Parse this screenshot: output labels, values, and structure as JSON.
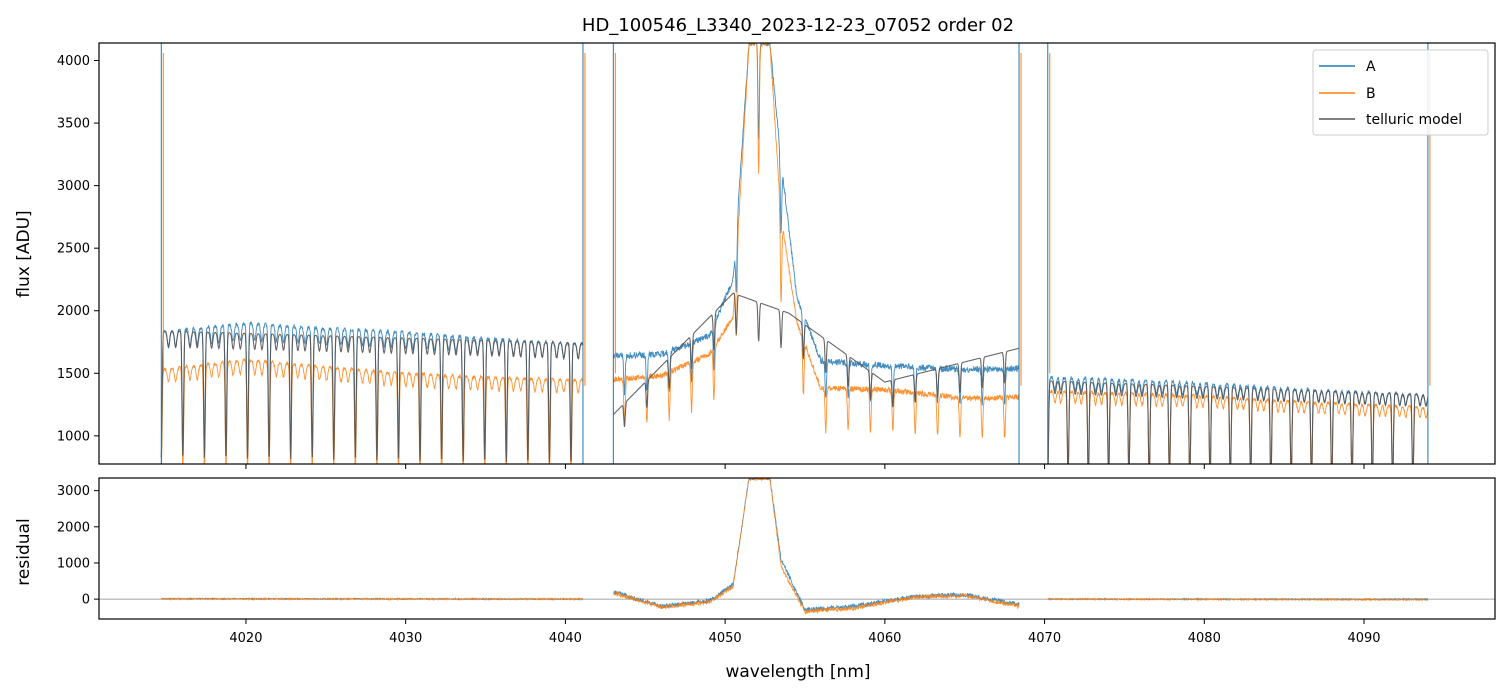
{
  "chart_data": {
    "type": "line",
    "title": "HD_100546_L3340_2023-12-23_07052  order 02",
    "xlabel": "wavelength [nm]",
    "x_ticks": [
      "4020",
      "4030",
      "4040",
      "4050",
      "4060",
      "4070",
      "4080",
      "4090"
    ],
    "xlim": [
      4010.8,
      4098.2
    ],
    "colors": {
      "A": "#1f77b4",
      "B": "#ff7f0e",
      "telluric": "#555555",
      "zero_line": "#888888"
    },
    "panels": [
      {
        "name": "flux",
        "ylabel": "flux [ADU]",
        "ylim": [
          775,
          4140
        ],
        "y_ticks": [
          "1000",
          "1500",
          "2000",
          "2500",
          "3000",
          "3500",
          "4000"
        ],
        "legend": {
          "placement": "top-right",
          "entries": [
            "A",
            "B",
            "telluric model"
          ]
        },
        "segments": [
          {
            "x_range": [
              4014.7,
              4041.1
            ],
            "A_continuum": 1850,
            "B_continuum": 1560,
            "telluric_continuum": 1840,
            "line_spacing_nm": 1.35,
            "line_depth_min": 780
          },
          {
            "x_range": [
              4043.0,
              4068.4
            ],
            "A_continuum": 1550,
            "B_continuum": 1380,
            "emission_peak_x": 4052.2,
            "emission_peak_A": 4140,
            "emission_peak_B": 4140
          },
          {
            "x_range": [
              4070.2,
              4094.0
            ],
            "A_continuum": 1450,
            "B_continuum": 1320,
            "telluric_continuum": 1440,
            "line_spacing_nm": 1.27,
            "line_depth_min": 780
          }
        ],
        "series": [
          {
            "name": "A",
            "points": [
              [
                4014.7,
                1830
              ],
              [
                4020,
                1900
              ],
              [
                4025,
                1860
              ],
              [
                4030,
                1830
              ],
              [
                4035,
                1780
              ],
              [
                4040,
                1740
              ],
              [
                4041.1,
                1740
              ],
              [
                4043,
                1640
              ],
              [
                4046,
                1650
              ],
              [
                4049,
                1800
              ],
              [
                4050.5,
                2250
              ],
              [
                4051.5,
                4140
              ],
              [
                4052.8,
                4140
              ],
              [
                4053.5,
                3200
              ],
              [
                4054.5,
                2100
              ],
              [
                4056,
                1600
              ],
              [
                4060,
                1560
              ],
              [
                4065,
                1530
              ],
              [
                4068.4,
                1540
              ],
              [
                4070.2,
                1470
              ],
              [
                4075,
                1450
              ],
              [
                4080,
                1420
              ],
              [
                4085,
                1380
              ],
              [
                4090,
                1350
              ],
              [
                4094,
                1330
              ]
            ]
          },
          {
            "name": "B",
            "points": [
              [
                4014.7,
                1530
              ],
              [
                4020,
                1610
              ],
              [
                4025,
                1550
              ],
              [
                4030,
                1500
              ],
              [
                4035,
                1470
              ],
              [
                4040,
                1450
              ],
              [
                4041.1,
                1450
              ],
              [
                4043,
                1450
              ],
              [
                4046,
                1480
              ],
              [
                4049,
                1650
              ],
              [
                4050.5,
                1950
              ],
              [
                4051.5,
                4140
              ],
              [
                4052.8,
                4140
              ],
              [
                4053.5,
                2750
              ],
              [
                4054.5,
                1900
              ],
              [
                4056,
                1380
              ],
              [
                4060,
                1370
              ],
              [
                4065,
                1300
              ],
              [
                4068.4,
                1310
              ],
              [
                4070.2,
                1360
              ],
              [
                4075,
                1340
              ],
              [
                4080,
                1320
              ],
              [
                4085,
                1280
              ],
              [
                4090,
                1250
              ],
              [
                4094,
                1230
              ]
            ]
          },
          {
            "name": "telluric model",
            "points": [
              [
                4014.7,
                1840
              ],
              [
                4041.1,
                1740
              ],
              [
                4043,
                1170
              ],
              [
                4050.5,
                2140
              ],
              [
                4054,
                1980
              ],
              [
                4060,
                1430
              ],
              [
                4068.4,
                1700
              ],
              [
                4070.2,
                1440
              ],
              [
                4094,
                1330
              ]
            ]
          }
        ]
      },
      {
        "name": "residual",
        "ylabel": "residual",
        "ylim": [
          -550,
          3350
        ],
        "y_ticks": [
          "0",
          "1000",
          "2000",
          "3000"
        ],
        "series": [
          {
            "name": "A",
            "points": [
              [
                4014.7,
                10
              ],
              [
                4041.1,
                0
              ],
              [
                4043,
                200
              ],
              [
                4046,
                -200
              ],
              [
                4049,
                -50
              ],
              [
                4050.5,
                400
              ],
              [
                4051.5,
                3350
              ],
              [
                4052.8,
                3350
              ],
              [
                4053.5,
                1100
              ],
              [
                4055,
                -300
              ],
              [
                4058,
                -200
              ],
              [
                4062,
                80
              ],
              [
                4065,
                120
              ],
              [
                4068.4,
                -150
              ],
              [
                4070.2,
                0
              ],
              [
                4094,
                0
              ]
            ]
          },
          {
            "name": "B",
            "points": [
              [
                4014.7,
                5
              ],
              [
                4041.1,
                0
              ],
              [
                4043,
                180
              ],
              [
                4046,
                -220
              ],
              [
                4049,
                -80
              ],
              [
                4050.5,
                350
              ],
              [
                4051.5,
                3350
              ],
              [
                4052.8,
                3350
              ],
              [
                4053.5,
                900
              ],
              [
                4055,
                -350
              ],
              [
                4058,
                -250
              ],
              [
                4062,
                60
              ],
              [
                4065,
                100
              ],
              [
                4068.4,
                -200
              ],
              [
                4070.2,
                0
              ],
              [
                4094,
                -20
              ]
            ]
          }
        ]
      }
    ]
  }
}
